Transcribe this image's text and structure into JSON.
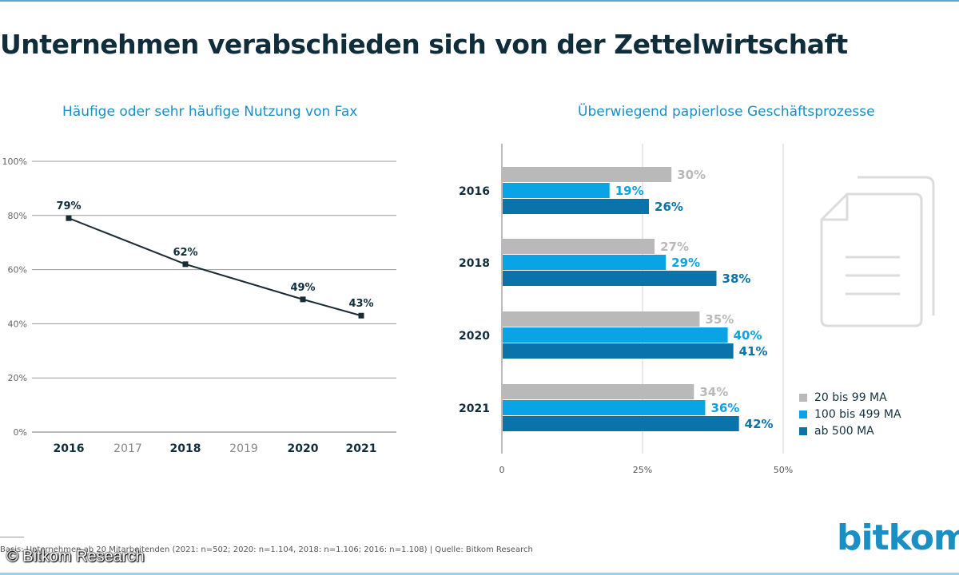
{
  "title": "Unternehmen verabschieden sich von der Zettelwirtschaft",
  "footnote": "Basis: Unternehmen ab 20 Mitarbeitenden (2021: n=502; 2020: n=1.104, 2018: n=1.106; 2016: n=1.108) | Quelle: Bitkom Research",
  "watermark": "© Bitkom Research",
  "logo": "bitkom",
  "colors": {
    "line": "#1b2b33",
    "grid": "#9a9a9a",
    "grey": "#b9b9b9",
    "lightblue": "#0aa3e6",
    "darkblue": "#0a73aa",
    "accent": "#1a8fc4"
  },
  "chart_data": [
    {
      "type": "line",
      "title": "Häufige oder sehr häufige Nutzung von Fax",
      "x": [
        "2016",
        "2017",
        "2018",
        "2019",
        "2020",
        "2021"
      ],
      "x_major": [
        "2016",
        "2018",
        "2020",
        "2021"
      ],
      "points": [
        {
          "x": "2016",
          "y": 79,
          "label": "79%"
        },
        {
          "x": "2018",
          "y": 62,
          "label": "62%"
        },
        {
          "x": "2020",
          "y": 49,
          "label": "49%"
        },
        {
          "x": "2021",
          "y": 43,
          "label": "43%"
        }
      ],
      "ylim": [
        0,
        100
      ],
      "yticks": [
        "0%",
        "20%",
        "40%",
        "60%",
        "80%",
        "100%"
      ],
      "grid": true
    },
    {
      "type": "bar",
      "orientation": "horizontal",
      "title": "Überwiegend papierlose Geschäftsprozesse",
      "categories": [
        "2016",
        "2018",
        "2020",
        "2021"
      ],
      "series": [
        {
          "name": "20 bis 99 MA",
          "color": "#b9b9b9",
          "values": [
            30,
            27,
            35,
            34
          ],
          "labels": [
            "30%",
            "27%",
            "35%",
            "34%"
          ]
        },
        {
          "name": "100 bis 499 MA",
          "color": "#0aa3e6",
          "values": [
            19,
            29,
            40,
            36
          ],
          "labels": [
            "19%",
            "29%",
            "40%",
            "36%"
          ]
        },
        {
          "name": "ab 500 MA",
          "color": "#0a73aa",
          "values": [
            26,
            38,
            41,
            42
          ],
          "labels": [
            "26%",
            "38%",
            "41%",
            "42%"
          ]
        }
      ],
      "xlim": [
        0,
        50
      ],
      "xticks": [
        "0",
        "25%",
        "50%"
      ],
      "legend": "bottom-right",
      "icon": "document-icon"
    }
  ]
}
